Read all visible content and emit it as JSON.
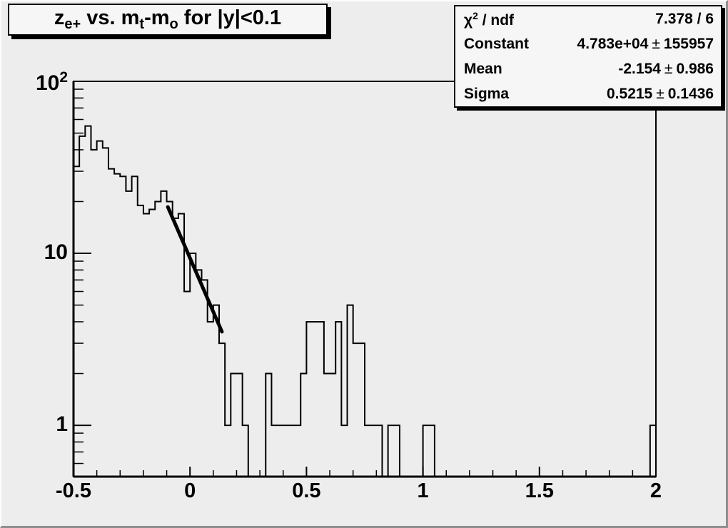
{
  "window": {
    "bg_color": "#ededed",
    "box_bg_color": "#f6f6f6",
    "line_color": "#000000",
    "bevel_light": "#fcfcfc",
    "bevel_dark": "#8f8f8f"
  },
  "title_box": {
    "p1": "z",
    "s1": "e+",
    "p2": " vs. m",
    "s2": "t",
    "p3": "-m",
    "s3": "o",
    "p4": " for |y|<0.1"
  },
  "stats_box": {
    "r0": {
      "chi": "χ",
      "sup": "2",
      "rest": " / ndf",
      "value": "7.378 / 6"
    },
    "rows": [
      {
        "label": "Constant",
        "value": "4.783e+04",
        "pm": "±",
        "err": "155957"
      },
      {
        "label": "Mean",
        "value": "-2.154",
        "pm": "±",
        "err": "0.986"
      },
      {
        "label": "Sigma",
        "value": "0.5215",
        "pm": "±",
        "err": "0.1436"
      }
    ]
  },
  "chart_data": {
    "type": "bar",
    "subtype": "step-histogram",
    "title": "z_e+ vs. m_t-m_o for |y|<0.1",
    "xlabel": "",
    "ylabel": "",
    "yscale": "log",
    "xlim": [
      -0.5,
      2
    ],
    "ylim": [
      0.503,
      100
    ],
    "grid": false,
    "legend": false,
    "x_start": -0.5,
    "bin_width": 0.025,
    "counts": [
      32,
      48,
      55,
      40,
      45,
      41,
      31,
      29,
      28,
      23,
      28,
      19,
      17,
      18,
      20,
      23,
      20,
      16,
      17,
      6,
      10,
      8,
      7,
      4,
      5,
      3,
      1,
      2,
      2,
      1,
      0,
      0,
      0,
      2,
      1,
      1,
      1,
      1,
      1,
      2,
      4,
      4,
      4,
      2,
      2,
      4,
      1,
      5,
      3,
      3,
      1,
      1,
      1,
      0,
      1,
      1,
      0,
      0,
      0,
      0,
      1,
      1,
      0,
      0,
      0,
      0,
      0,
      0,
      0,
      0,
      0,
      0,
      0,
      0,
      0,
      0,
      0,
      0,
      0,
      0,
      0,
      0,
      0,
      0,
      0,
      0,
      0,
      0,
      0,
      0,
      0,
      0,
      0,
      0,
      0,
      0,
      0,
      0,
      0,
      1
    ],
    "x_major_ticks": [
      {
        "value": -0.5,
        "text": "-0.5"
      },
      {
        "value": 0,
        "text": "0"
      },
      {
        "value": 0.5,
        "text": "0.5"
      },
      {
        "value": 1,
        "text": "1"
      },
      {
        "value": 1.5,
        "text": "1.5"
      },
      {
        "value": 2,
        "text": "2"
      }
    ],
    "x_minor_step": 0.1,
    "y_major_ticks": [
      {
        "value": 1,
        "text": "1",
        "sup": ""
      },
      {
        "value": 10,
        "text": "10",
        "sup": ""
      },
      {
        "value": 100,
        "text": "10",
        "sup": "2"
      }
    ],
    "fit_line": {
      "x1": -0.095,
      "y1": 18.6,
      "x2": 0.137,
      "y2": 3.5,
      "color": "#000000",
      "width": 5
    },
    "fit_stats": {
      "chi2_ndf": "7.378 / 6",
      "constant": "4.783e+04 ± 155957",
      "mean": "-2.154 ± 0.986",
      "sigma": "0.5215 ± 0.1436"
    }
  }
}
